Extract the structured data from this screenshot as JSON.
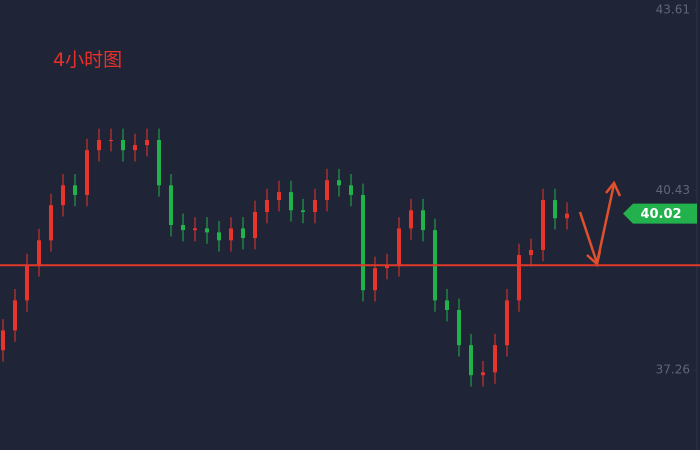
{
  "chart_data": {
    "type": "candlestick",
    "title": "4小时图",
    "ylim": [
      35.85,
      43.79
    ],
    "yticks": [
      37.26,
      40.43,
      43.61
    ],
    "up_color": "#e8352b",
    "down_color": "#21b24b",
    "open": [
      37.61,
      37.96,
      38.49,
      39.11,
      39.55,
      40.17,
      40.52,
      40.35,
      41.14,
      41.32,
      41.32,
      41.14,
      41.23,
      41.32,
      40.52,
      39.82,
      39.73,
      39.76,
      39.69,
      39.55,
      39.76,
      39.59,
      40.05,
      40.26,
      40.4,
      40.08,
      40.05,
      40.26,
      40.61,
      40.52,
      40.35,
      38.67,
      39.06,
      39.11,
      39.76,
      40.08,
      39.73,
      38.49,
      38.32,
      37.7,
      37.17,
      37.22,
      37.7,
      38.49,
      39.29,
      39.38,
      40.26,
      39.94
    ],
    "high": [
      38.16,
      38.69,
      39.31,
      39.75,
      40.37,
      40.72,
      40.72,
      41.34,
      41.52,
      41.52,
      41.52,
      41.43,
      41.52,
      41.52,
      40.72,
      40.02,
      39.96,
      39.96,
      39.89,
      39.96,
      39.96,
      40.25,
      40.46,
      40.6,
      40.6,
      40.28,
      40.46,
      40.81,
      40.81,
      40.72,
      40.55,
      39.26,
      39.31,
      39.96,
      40.28,
      40.28,
      39.93,
      38.69,
      38.52,
      37.9,
      37.42,
      37.9,
      38.69,
      39.49,
      39.58,
      40.46,
      40.46,
      40.22
    ],
    "low": [
      37.41,
      37.76,
      38.29,
      38.91,
      39.35,
      39.97,
      40.15,
      40.15,
      40.94,
      41.12,
      40.94,
      40.94,
      41.03,
      40.32,
      39.62,
      39.53,
      39.53,
      39.49,
      39.35,
      39.35,
      39.39,
      39.39,
      39.85,
      40.06,
      39.88,
      39.85,
      39.85,
      40.06,
      40.32,
      40.15,
      38.47,
      38.47,
      38.86,
      38.91,
      39.56,
      39.53,
      38.29,
      38.12,
      37.5,
      36.97,
      36.97,
      37.02,
      37.5,
      38.29,
      39.09,
      39.18,
      39.74,
      39.74
    ],
    "close": [
      37.96,
      38.49,
      39.11,
      39.55,
      40.17,
      40.52,
      40.35,
      41.14,
      41.32,
      41.32,
      41.14,
      41.23,
      41.32,
      40.52,
      39.82,
      39.73,
      39.76,
      39.69,
      39.55,
      39.76,
      39.59,
      40.05,
      40.26,
      40.4,
      40.08,
      40.05,
      40.26,
      40.61,
      40.52,
      40.35,
      38.67,
      39.06,
      39.11,
      39.76,
      40.08,
      39.73,
      38.49,
      38.32,
      37.7,
      37.17,
      37.22,
      37.7,
      38.49,
      39.29,
      39.38,
      40.26,
      39.94,
      40.02
    ],
    "last_price": 40.02,
    "last_price_color": "#22b14c",
    "support_line": 39.11,
    "support_color": "#e0392c"
  }
}
